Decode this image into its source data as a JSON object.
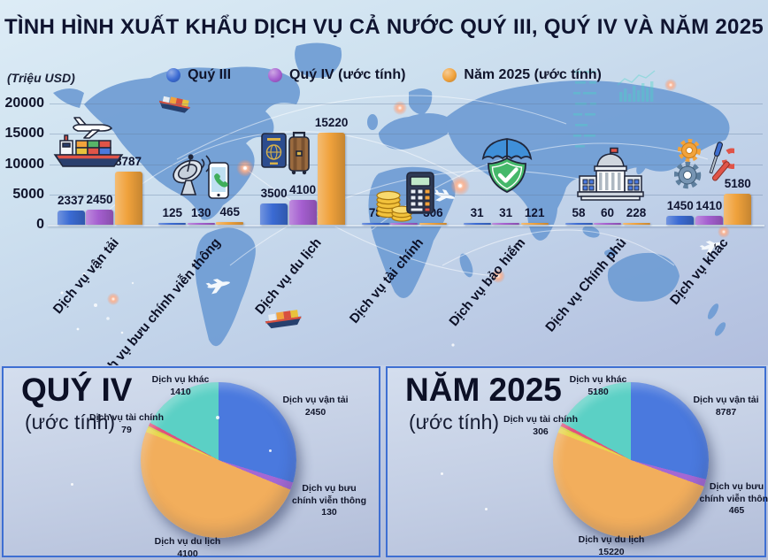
{
  "title": "TÌNH HÌNH XUẤT KHẨU DỊCH VỤ CẢ NƯỚC QUÝ III, QUÝ IV VÀ NĂM 2025",
  "unit_label": "(Triệu USD)",
  "legend": [
    {
      "label": "Quý III",
      "color": "#3b6bd3"
    },
    {
      "label": "Quý IV (ước tính)",
      "color": "#a55fd0"
    },
    {
      "label": "Năm 2025 (ước tính)",
      "color": "#f0a23c"
    }
  ],
  "chart_data": [
    {
      "type": "bar",
      "title": "TÌNH HÌNH XUẤT KHẨU DỊCH VỤ CẢ NƯỚC QUÝ III, QUÝ IV VÀ NĂM 2025",
      "ylabel": "Triệu USD",
      "ylim": [
        0,
        20000
      ],
      "yticks": [
        0,
        5000,
        10000,
        15000,
        20000
      ],
      "grid": true,
      "legend_position": "top-center",
      "categories": [
        "Dịch vụ vận tải",
        "Dịch vụ bưu chính viễn thông",
        "Dịch vụ du lịch",
        "Dịch vụ tài chính",
        "Dịch vụ bảo hiểm",
        "Dịch vụ Chính phủ",
        "Dịch vụ khác"
      ],
      "category_icons": [
        "cargo-ship-airplane-icon",
        "satellite-dish-phone-icon",
        "passport-luggage-icon",
        "coins-calculator-icon",
        "umbrella-shield-icon",
        "government-building-icon",
        "gears-tools-icon"
      ],
      "series": [
        {
          "name": "Quý III",
          "color": "#3b6bd3",
          "values": [
            2337,
            125,
            3500,
            78,
            31,
            58,
            1450
          ]
        },
        {
          "name": "Quý IV (ước tính)",
          "color": "#a55fd0",
          "values": [
            2450,
            130,
            4100,
            79,
            31,
            60,
            1410
          ]
        },
        {
          "name": "Năm 2025 (ước tính)",
          "color": "#f0a23c",
          "values": [
            8787,
            465,
            15220,
            306,
            121,
            228,
            5180
          ]
        }
      ]
    },
    {
      "type": "pie",
      "title": "QUÝ IV",
      "subtitle": "(ước tính)",
      "start_angle_deg": 0,
      "slices": [
        {
          "label": "Dịch vụ vận tải",
          "value": 2450,
          "color": "#4a79de",
          "label_shown": true
        },
        {
          "label": "Dịch vụ bưu chính viễn thông",
          "value": 130,
          "color": "#a468d4",
          "label_shown": true
        },
        {
          "label": "Dịch vụ du lịch",
          "value": 4100,
          "color": "#f2ae5c",
          "label_shown": true
        },
        {
          "label": "Dịch vụ tài chính",
          "value": 79,
          "color": "#e8d64e",
          "label_shown": true
        },
        {
          "label": "Dịch vụ bảo hiểm",
          "value": 31,
          "color": "#d3cf4a",
          "label_shown": false
        },
        {
          "label": "Dịch vụ Chính phủ",
          "value": 60,
          "color": "#e0527c",
          "label_shown": false
        },
        {
          "label": "Dịch vụ khác",
          "value": 1410,
          "color": "#5bd0c5",
          "label_shown": true
        }
      ]
    },
    {
      "type": "pie",
      "title": "NĂM 2025",
      "subtitle": "(ước tính)",
      "start_angle_deg": 0,
      "slices": [
        {
          "label": "Dịch vụ vận tải",
          "value": 8787,
          "color": "#4a79de",
          "label_shown": true
        },
        {
          "label": "Dịch vụ bưu chính viễn thông",
          "value": 465,
          "color": "#a468d4",
          "label_shown": true
        },
        {
          "label": "Dịch vụ du lịch",
          "value": 15220,
          "color": "#f2ae5c",
          "label_shown": true
        },
        {
          "label": "Dịch vụ tài chính",
          "value": 306,
          "color": "#e8d64e",
          "label_shown": true
        },
        {
          "label": "Dịch vụ bảo hiểm",
          "value": 121,
          "color": "#d3cf4a",
          "label_shown": false
        },
        {
          "label": "Dịch vụ Chính phủ",
          "value": 228,
          "color": "#e0527c",
          "label_shown": false
        },
        {
          "label": "Dịch vụ khác",
          "value": 5180,
          "color": "#5bd0c5",
          "label_shown": true
        }
      ]
    }
  ]
}
